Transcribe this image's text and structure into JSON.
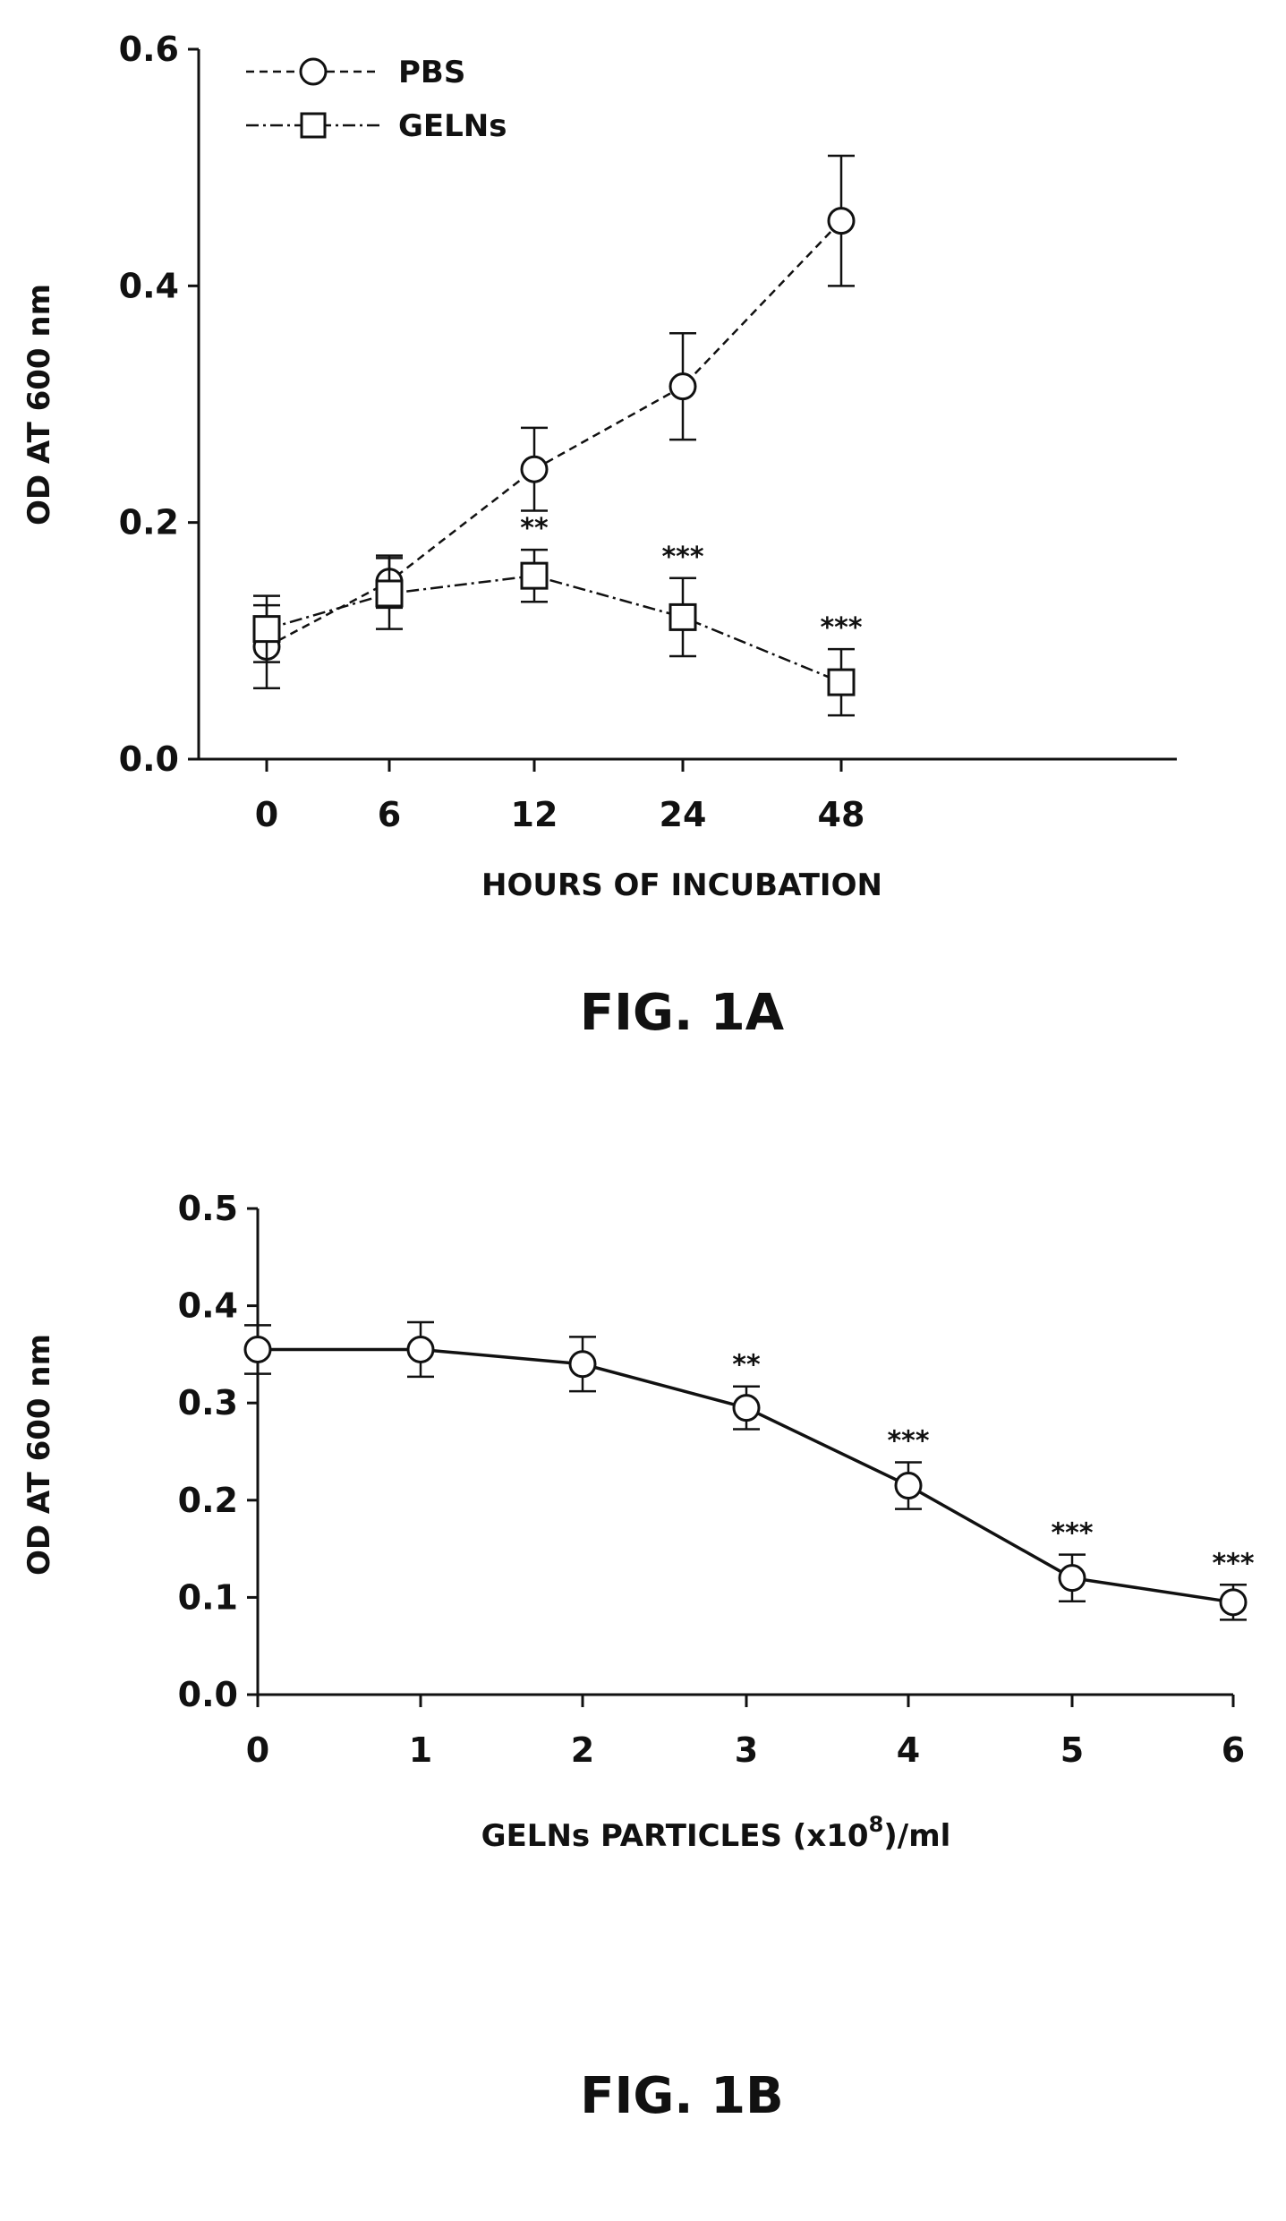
{
  "figure_a_caption": "FIG. 1A",
  "figure_b_caption": "FIG. 1B",
  "chart_data": [
    {
      "type": "line",
      "xlabel": "HOURS OF INCUBATION",
      "ylabel": "OD AT 600 nm",
      "categories": [
        "0",
        "6",
        "12",
        "24",
        "48"
      ],
      "x_scale": "categorical",
      "ylim": [
        0,
        0.6
      ],
      "yticks": [
        "0.0",
        "0.2",
        "0.4",
        "0.6"
      ],
      "grid": false,
      "legend": "top-left",
      "series": [
        {
          "name": "PBS",
          "marker": "circle",
          "line_style": "dashed",
          "values": [
            0.095,
            0.15,
            0.245,
            0.315,
            0.455
          ],
          "errors": [
            0.035,
            0.022,
            0.035,
            0.045,
            0.055
          ],
          "significance": [
            "",
            "",
            "",
            "",
            ""
          ]
        },
        {
          "name": "GELNs",
          "marker": "square",
          "line_style": "dash-dot",
          "values": [
            0.11,
            0.14,
            0.155,
            0.12,
            0.065
          ],
          "errors": [
            0.028,
            0.03,
            0.022,
            0.033,
            0.028
          ],
          "significance": [
            "",
            "",
            "**",
            "***",
            "***"
          ]
        }
      ]
    },
    {
      "type": "line",
      "xlabel": "GELNs PARTICLES (x10",
      "xlabel_superscript": "8",
      "xlabel_suffix": ")/ml",
      "ylabel": "OD AT 600 nm",
      "categories": [
        "0",
        "1",
        "2",
        "3",
        "4",
        "5",
        "6"
      ],
      "ylim": [
        0,
        0.5
      ],
      "yticks": [
        "0.0",
        "0.1",
        "0.2",
        "0.3",
        "0.4",
        "0.5"
      ],
      "grid": false,
      "series": [
        {
          "marker": "circle",
          "line_style": "solid",
          "values": [
            0.355,
            0.355,
            0.34,
            0.295,
            0.215,
            0.12,
            0.095
          ],
          "errors": [
            0.025,
            0.028,
            0.028,
            0.022,
            0.024,
            0.024,
            0.018
          ],
          "significance": [
            "",
            "",
            "",
            "**",
            "***",
            "***",
            "***"
          ]
        }
      ]
    }
  ]
}
